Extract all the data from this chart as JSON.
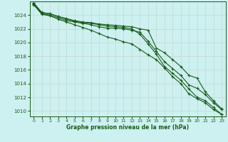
{
  "title": "Graphe pression niveau de la mer (hPa)",
  "background_color": "#cdf0f0",
  "grid_color_h": "#c8d8d0",
  "grid_color_v": "#c8d8d0",
  "line_color": "#1a5c1a",
  "x_ticks": [
    0,
    1,
    2,
    3,
    4,
    5,
    6,
    7,
    8,
    9,
    10,
    11,
    12,
    13,
    14,
    15,
    16,
    17,
    18,
    19,
    20,
    21,
    22,
    23
  ],
  "y_ticks": [
    1010,
    1012,
    1014,
    1016,
    1018,
    1020,
    1022,
    1024
  ],
  "ylim": [
    1009.2,
    1026.0
  ],
  "xlim": [
    -0.5,
    23.5
  ],
  "series": [
    [
      1025.8,
      1024.3,
      1024.2,
      1023.8,
      1023.5,
      1023.2,
      1023.0,
      1022.9,
      1022.7,
      1022.6,
      1022.5,
      1022.4,
      1022.3,
      1022.0,
      1021.8,
      1019.2,
      1018.5,
      1017.5,
      1016.5,
      1015.2,
      1014.8,
      1012.8,
      1011.5,
      1010.3
    ],
    [
      1025.6,
      1024.2,
      1024.0,
      1023.6,
      1023.2,
      1023.0,
      1022.8,
      1022.6,
      1022.3,
      1022.1,
      1022.1,
      1022.0,
      1021.8,
      1021.5,
      1020.2,
      1018.7,
      1017.2,
      1016.2,
      1015.2,
      1013.8,
      1013.3,
      1012.4,
      1011.2,
      1010.2
    ],
    [
      1025.7,
      1024.4,
      1024.2,
      1023.8,
      1023.4,
      1023.1,
      1022.9,
      1022.8,
      1022.6,
      1022.4,
      1022.3,
      1022.2,
      1022.0,
      1021.2,
      1019.8,
      1018.3,
      1016.5,
      1015.5,
      1014.5,
      1013.2,
      1012.0,
      1011.5,
      1010.5,
      1009.5
    ],
    [
      1025.5,
      1024.1,
      1023.9,
      1023.4,
      1023.0,
      1022.6,
      1022.2,
      1021.8,
      1021.3,
      1020.8,
      1020.5,
      1020.1,
      1019.8,
      1019.0,
      1018.2,
      1017.5,
      1016.3,
      1015.0,
      1014.0,
      1012.5,
      1011.8,
      1011.2,
      1010.2,
      1009.5
    ]
  ]
}
